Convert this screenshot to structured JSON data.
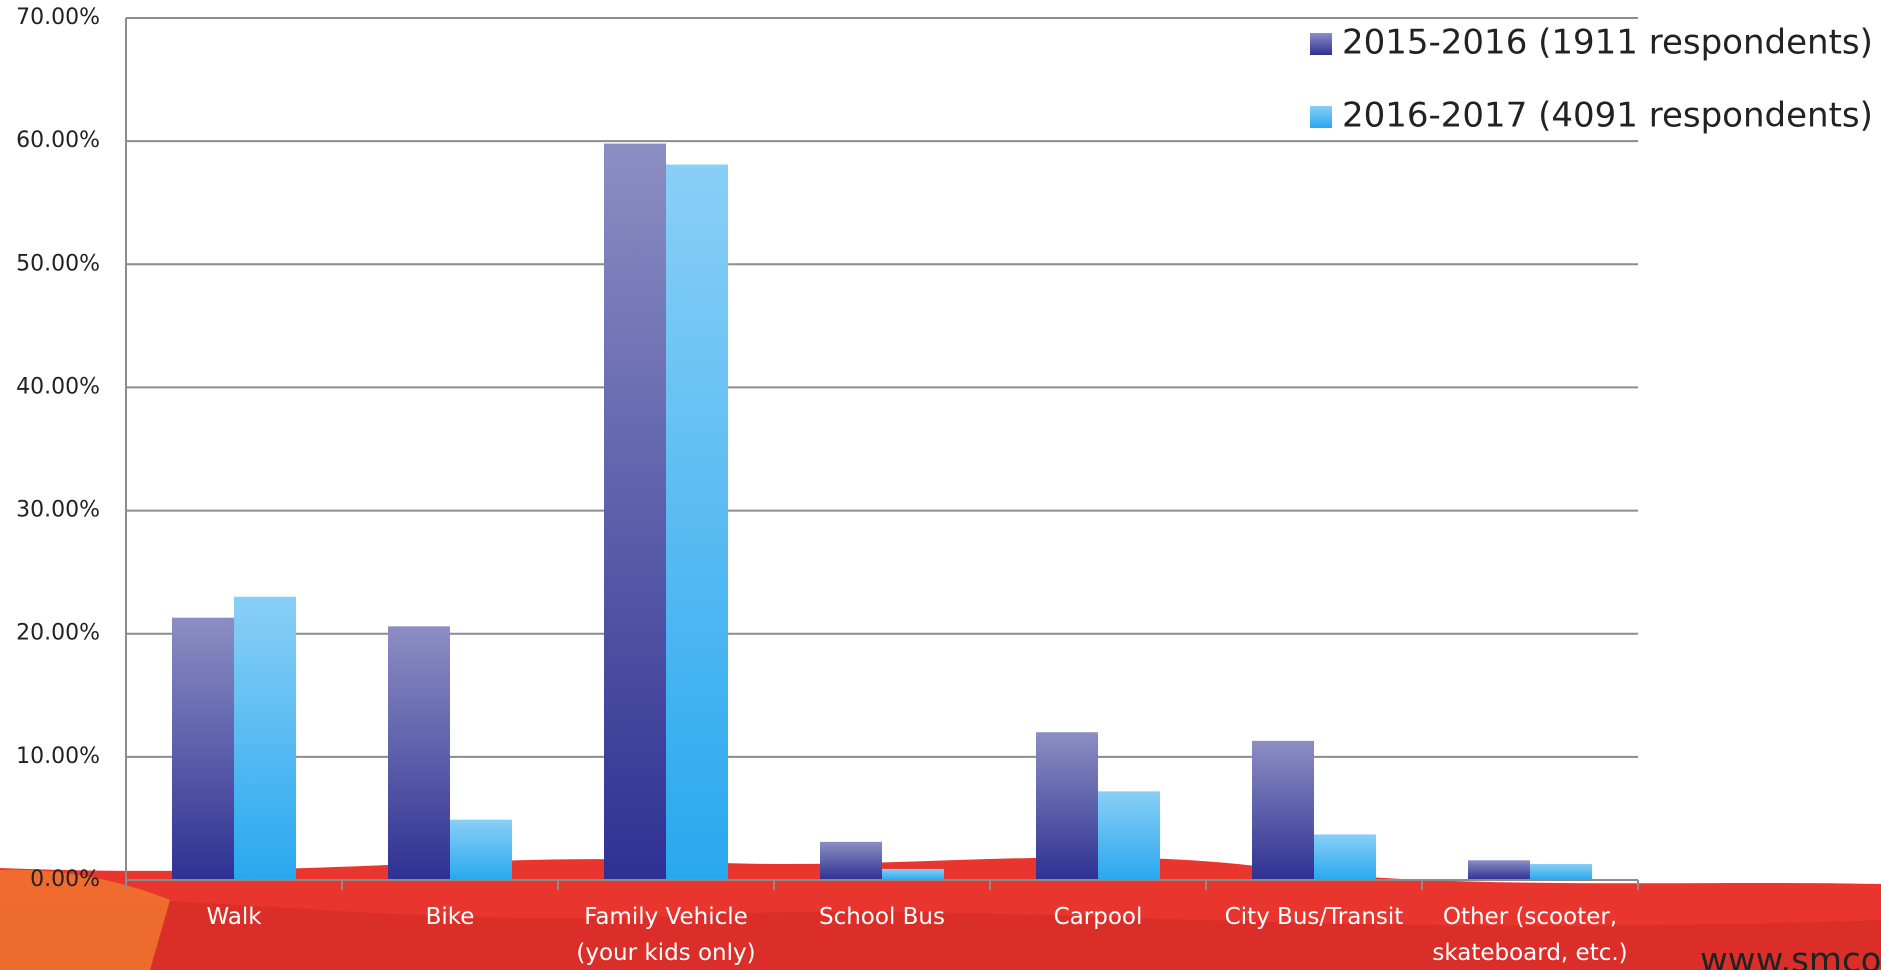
{
  "chart_data": {
    "type": "bar",
    "categories": [
      "Walk",
      "Bike",
      "Family Vehicle\n(your kids only)",
      "School Bus",
      "Carpool",
      "City Bus/Transit",
      "Other (scooter,\nskateboard, etc.)"
    ],
    "series": [
      {
        "name": "2015-2016 (1911 respondents)",
        "color": "#2e3192",
        "values": [
          21.3,
          20.6,
          59.8,
          3.1,
          12.0,
          11.3,
          1.6
        ]
      },
      {
        "name": "2016-2017 (4091 respondents)",
        "color": "#29a8ef",
        "values": [
          23.0,
          4.9,
          58.1,
          0.9,
          7.2,
          3.7,
          1.3
        ]
      }
    ],
    "ylim": [
      0,
      70
    ],
    "yticks": [
      {
        "value": 0,
        "label": "0.00%"
      },
      {
        "value": 10,
        "label": "10.00%"
      },
      {
        "value": 20,
        "label": "20.00%"
      },
      {
        "value": 30,
        "label": "30.00%"
      },
      {
        "value": 40,
        "label": "40.00%"
      },
      {
        "value": 50,
        "label": "50.00%"
      },
      {
        "value": 60,
        "label": "60.00%"
      },
      {
        "value": 70,
        "label": "70.00%"
      }
    ],
    "grid": true,
    "legend": "top-right",
    "footer": "www.smcoe.org"
  }
}
